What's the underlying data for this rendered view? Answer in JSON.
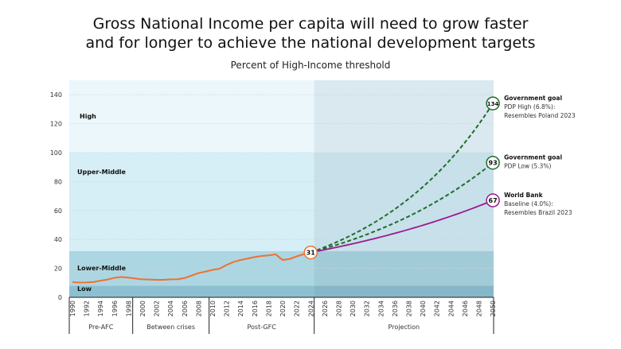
{
  "chart_data": {
    "type": "line",
    "title": "Gross National Income per capita will need to grow faster and for longer to achieve the national development targets",
    "subtitle": "Percent of High-Income threshold",
    "ylim": [
      0,
      150
    ],
    "yticks": [
      0,
      20,
      40,
      60,
      80,
      100,
      120,
      140
    ],
    "xlim": [
      1990,
      2050
    ],
    "xticks": [
      1990,
      1992,
      1994,
      1996,
      1998,
      2000,
      2002,
      2004,
      2006,
      2008,
      2010,
      2012,
      2014,
      2016,
      2018,
      2020,
      2022,
      2024,
      2026,
      2028,
      2030,
      2032,
      2034,
      2036,
      2038,
      2040,
      2042,
      2044,
      2046,
      2048,
      2050
    ],
    "grid": true,
    "bands": [
      {
        "label": "Low",
        "from": 0,
        "to": 8,
        "color": "#8cc0d0"
      },
      {
        "label": "Lower-Middle",
        "from": 8,
        "to": 32,
        "color": "#acd6e2"
      },
      {
        "label": "Upper-Middle",
        "from": 32,
        "to": 100,
        "color": "#d6eef6"
      },
      {
        "label": "High",
        "from": 100,
        "to": 150,
        "color": "#ecf7fc"
      }
    ],
    "periods": [
      {
        "label": "Pre-AFC",
        "from": 1990,
        "to": 1998.6
      },
      {
        "label": "Between crises",
        "from": 1998.6,
        "to": 2009.5
      },
      {
        "label": "Post-GFC",
        "from": 2009.5,
        "to": 2024.5
      },
      {
        "label": "Projection",
        "from": 2024.5,
        "to": 2050
      }
    ],
    "projection_shade_from": 2024.5,
    "history": {
      "color": "#f07030",
      "x": [
        1990,
        1991,
        1992,
        1993,
        1994,
        1995,
        1996,
        1997,
        1998,
        1999,
        2000,
        2001,
        2002,
        2003,
        2004,
        2005,
        2006,
        2007,
        2008,
        2009,
        2010,
        2011,
        2012,
        2013,
        2014,
        2015,
        2016,
        2017,
        2018,
        2019,
        2020,
        2021,
        2022,
        2023,
        2024
      ],
      "y": [
        10.5,
        10.2,
        10.3,
        10.6,
        11.5,
        12.3,
        13.5,
        14.1,
        13.6,
        13.0,
        12.4,
        12.3,
        12.1,
        12.1,
        12.4,
        12.5,
        13.3,
        15.0,
        16.8,
        17.8,
        19.0,
        19.8,
        22.4,
        24.5,
        25.8,
        26.8,
        27.8,
        28.6,
        29.0,
        29.7,
        25.8,
        26.5,
        28.3,
        29.8,
        31
      ],
      "end_label": "31"
    },
    "series": [
      {
        "name": "Government goal",
        "desc1": "PDP High (6.8%):",
        "desc2": "Resembles Poland 2023",
        "start": 31,
        "end": 134,
        "end_label": "134",
        "color": "#1f6e2a",
        "dash": true
      },
      {
        "name": "Government goal",
        "desc1": "PDP Low (5.3%)",
        "desc2": "",
        "start": 31,
        "end": 93,
        "end_label": "93",
        "color": "#1f6e2a",
        "dash": true
      },
      {
        "name": "World Bank",
        "desc1": "Baseline (4.0%):",
        "desc2": "Resembles Brazil 2023",
        "start": 31,
        "end": 67,
        "end_label": "67",
        "color": "#9b1a8f",
        "dash": false
      }
    ]
  }
}
